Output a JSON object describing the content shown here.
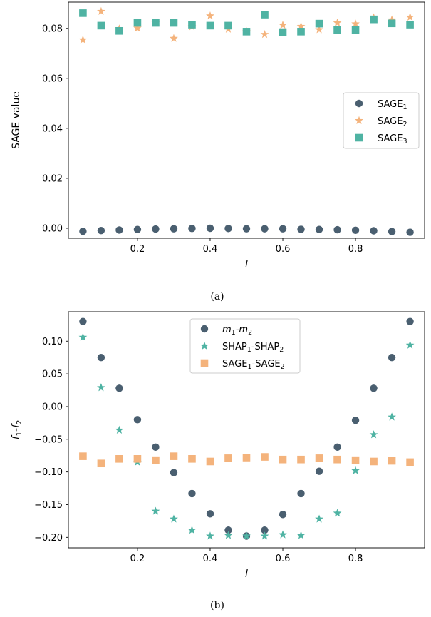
{
  "colors": {
    "series_dark": "#4a5f70",
    "series_orange": "#f4b37c",
    "series_teal": "#4fb3a3"
  },
  "chart_data": [
    {
      "type": "scatter",
      "caption": "(a)",
      "xlabel": "l",
      "ylabel": "SAGE value",
      "xlim": [
        0.01,
        0.99
      ],
      "ylim": [
        -0.004,
        0.0905
      ],
      "xticks": [
        0.2,
        0.4,
        0.6,
        0.8
      ],
      "xtick_labels": [
        "0.2",
        "0.4",
        "0.6",
        "0.8"
      ],
      "yticks": [
        0.0,
        0.02,
        0.04,
        0.06,
        0.08
      ],
      "ytick_labels": [
        "0.00",
        "0.02",
        "0.04",
        "0.06",
        "0.08"
      ],
      "legend": "center-right",
      "x": [
        0.05,
        0.1,
        0.15,
        0.2,
        0.25,
        0.3,
        0.35,
        0.4,
        0.45,
        0.5,
        0.55,
        0.6,
        0.65,
        0.7,
        0.75,
        0.8,
        0.85,
        0.9,
        0.95
      ],
      "series": [
        {
          "name": "SAGE",
          "sub": "1",
          "marker": "circle",
          "color": "#4a5f70",
          "values": [
            -0.0012,
            -0.0009,
            -0.0007,
            -0.0005,
            -0.0003,
            -0.0002,
            -0.0001,
            0.0,
            -0.0001,
            -0.0002,
            -0.0002,
            -0.0002,
            -0.0004,
            -0.0005,
            -0.0006,
            -0.0008,
            -0.001,
            -0.0013,
            -0.0016
          ]
        },
        {
          "name": "SAGE",
          "sub": "2",
          "marker": "star",
          "color": "#f4b37c",
          "values": [
            0.0754,
            0.0868,
            0.0798,
            0.0801,
            0.0822,
            0.076,
            0.0807,
            0.085,
            0.0797,
            0.0788,
            0.0776,
            0.0813,
            0.0808,
            0.0795,
            0.0822,
            0.0818,
            0.0843,
            0.0834,
            0.0845
          ]
        },
        {
          "name": "SAGE",
          "sub": "3",
          "marker": "square",
          "color": "#4fb3a3",
          "values": [
            0.0861,
            0.0811,
            0.079,
            0.0822,
            0.0822,
            0.0822,
            0.0815,
            0.0811,
            0.0811,
            0.0787,
            0.0855,
            0.0785,
            0.0787,
            0.0819,
            0.0793,
            0.0793,
            0.0836,
            0.082,
            0.0815
          ]
        }
      ]
    },
    {
      "type": "scatter",
      "caption": "(b)",
      "xlabel": "l",
      "ylabel": "f",
      "ylabel_parts": [
        "f",
        "1",
        "-f",
        "2"
      ],
      "xlim": [
        0.01,
        0.99
      ],
      "ylim": [
        -0.216,
        0.145
      ],
      "xticks": [
        0.2,
        0.4,
        0.6,
        0.8
      ],
      "xtick_labels": [
        "0.2",
        "0.4",
        "0.6",
        "0.8"
      ],
      "yticks": [
        0.1,
        0.05,
        0.0,
        -0.05,
        -0.1,
        -0.15,
        -0.2
      ],
      "ytick_labels": [
        "0.10",
        "0.05",
        "0.00",
        "−0.05",
        "−0.10",
        "−0.15",
        "−0.20"
      ],
      "legend": "top-center",
      "x": [
        0.05,
        0.1,
        0.15,
        0.2,
        0.25,
        0.3,
        0.35,
        0.4,
        0.45,
        0.5,
        0.55,
        0.6,
        0.65,
        0.7,
        0.75,
        0.8,
        0.85,
        0.9,
        0.95
      ],
      "series": [
        {
          "label_parts": [
            "m",
            "1",
            "-m",
            "2"
          ],
          "italic": true,
          "marker": "circle",
          "color": "#4a5f70",
          "values": [
            0.13,
            0.075,
            0.028,
            -0.02,
            -0.062,
            -0.101,
            -0.133,
            -0.164,
            -0.189,
            -0.198,
            -0.189,
            -0.165,
            -0.133,
            -0.099,
            -0.062,
            -0.021,
            0.028,
            0.075,
            0.13
          ]
        },
        {
          "label_parts": [
            "SHAP",
            "1",
            "-SHAP",
            "2"
          ],
          "italic": false,
          "marker": "star",
          "color": "#4fb3a3",
          "values": [
            0.106,
            0.029,
            -0.036,
            -0.085,
            -0.16,
            -0.172,
            -0.189,
            -0.198,
            -0.197,
            -0.198,
            -0.198,
            -0.196,
            -0.197,
            -0.172,
            -0.163,
            -0.098,
            -0.043,
            -0.016,
            0.094
          ]
        },
        {
          "label_parts": [
            "SAGE",
            "1",
            "-SAGE",
            "2"
          ],
          "italic": false,
          "marker": "square",
          "color": "#f4b37c",
          "values": [
            -0.076,
            -0.087,
            -0.08,
            -0.08,
            -0.082,
            -0.076,
            -0.08,
            -0.084,
            -0.079,
            -0.078,
            -0.077,
            -0.081,
            -0.081,
            -0.079,
            -0.081,
            -0.082,
            -0.084,
            -0.083,
            -0.085
          ]
        }
      ]
    }
  ]
}
